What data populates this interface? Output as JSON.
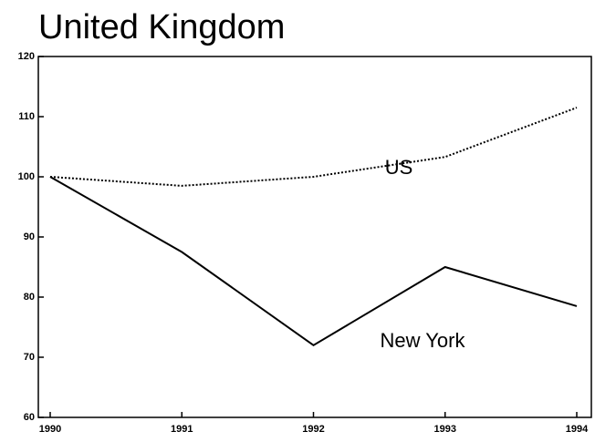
{
  "chart_data": {
    "type": "line",
    "title": "United Kingdom",
    "categories": [
      "1990",
      "1991",
      "1992",
      "1993",
      "1994"
    ],
    "series": [
      {
        "name": "US",
        "color": "#000000",
        "dash": "dotted",
        "values": [
          100,
          98.5,
          100,
          103.3,
          111.5
        ]
      },
      {
        "name": "New York",
        "color": "#000000",
        "dash": "solid",
        "values": [
          100,
          87.5,
          72,
          85,
          78.5
        ]
      }
    ],
    "ylim": [
      60,
      120
    ],
    "yticks": [
      60,
      70,
      80,
      90,
      100,
      110,
      120
    ],
    "grid": false
  }
}
